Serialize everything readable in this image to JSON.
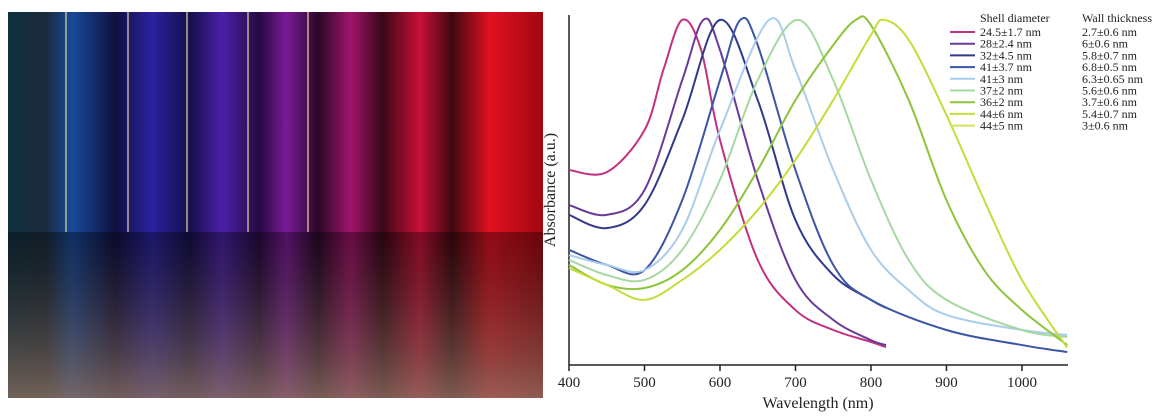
{
  "chart_data": {
    "type": "line",
    "xlabel": "Wavelength (nm)",
    "ylabel": "Absorbance (a.u.)",
    "legend_headers": [
      "Shell diameter",
      "Wall thickness"
    ],
    "xlim": [
      400,
      1061
    ],
    "ylim": [
      0,
      1
    ],
    "xticks": [
      400,
      500,
      600,
      700,
      800,
      900,
      1000
    ],
    "series": [
      {
        "name": "24.5±1.7 nm",
        "wall_thickness": "2.7±0.6 nm",
        "color": "#c2307f",
        "x": [
          400,
          450,
          500,
          525,
          550,
          575,
          600,
          650,
          700,
          750,
          800,
          820
        ],
        "values": [
          0.557,
          0.551,
          0.671,
          0.843,
          0.986,
          0.9,
          0.643,
          0.3,
          0.157,
          0.1,
          0.066,
          0.051
        ]
      },
      {
        "name": "28±2.4 nm",
        "wall_thickness": "6±0.6 nm",
        "color": "#6a3a9a",
        "x": [
          400,
          450,
          500,
          550,
          578,
          600,
          650,
          700,
          750,
          800,
          820
        ],
        "values": [
          0.457,
          0.429,
          0.5,
          0.814,
          0.986,
          0.9,
          0.529,
          0.243,
          0.129,
          0.071,
          0.057
        ]
      },
      {
        "name": "32±4.5 nm",
        "wall_thickness": "5.8±0.7 nm",
        "color": "#33378a",
        "x": [
          400,
          450,
          500,
          550,
          600,
          650,
          700,
          750,
          800,
          820
        ],
        "values": [
          0.429,
          0.391,
          0.457,
          0.7,
          0.986,
          0.757,
          0.414,
          0.257,
          0.186,
          0.163
        ]
      },
      {
        "name": "41±3.7 nm",
        "wall_thickness": "6.8±0.5 nm",
        "color": "#3c55a5",
        "x": [
          400,
          450,
          500,
          550,
          600,
          627,
          650,
          700,
          750,
          800,
          900,
          1000,
          1060
        ],
        "values": [
          0.329,
          0.286,
          0.271,
          0.471,
          0.814,
          0.986,
          0.914,
          0.557,
          0.286,
          0.186,
          0.1,
          0.057,
          0.037
        ]
      },
      {
        "name": "41±3 nm",
        "wall_thickness": "6.3±0.65 nm",
        "color": "#a9cdeb",
        "x": [
          400,
          450,
          500,
          550,
          600,
          665,
          700,
          750,
          800,
          850,
          900,
          1000,
          1060
        ],
        "values": [
          0.314,
          0.286,
          0.271,
          0.386,
          0.671,
          0.986,
          0.843,
          0.557,
          0.329,
          0.214,
          0.143,
          0.1,
          0.086
        ]
      },
      {
        "name": "37±2 nm",
        "wall_thickness": "5.6±0.6 nm",
        "color": "#a6d8a2",
        "x": [
          400,
          450,
          500,
          550,
          600,
          650,
          703,
          750,
          800,
          850,
          900,
          1000,
          1060
        ],
        "values": [
          0.3,
          0.257,
          0.243,
          0.329,
          0.529,
          0.814,
          0.986,
          0.814,
          0.529,
          0.3,
          0.186,
          0.1,
          0.08
        ]
      },
      {
        "name": "36±2 nm",
        "wall_thickness": "3.7±0.6 nm",
        "color": "#8cc43c",
        "x": [
          400,
          450,
          500,
          550,
          600,
          650,
          700,
          750,
          780,
          800,
          850,
          900,
          950,
          1000,
          1060
        ],
        "values": [
          0.286,
          0.229,
          0.22,
          0.271,
          0.386,
          0.557,
          0.757,
          0.914,
          0.986,
          0.971,
          0.757,
          0.471,
          0.271,
          0.157,
          0.057
        ]
      },
      {
        "name": "44±6 nm",
        "wall_thickness": "5.4±0.7 nm",
        "color": "#c6dc3a",
        "x": [
          400,
          450,
          500,
          550,
          600,
          650,
          700,
          750,
          800,
          817,
          850,
          900,
          950,
          1000,
          1060
        ],
        "values": [
          0.277,
          0.229,
          0.186,
          0.243,
          0.329,
          0.443,
          0.586,
          0.757,
          0.943,
          0.986,
          0.929,
          0.714,
          0.471,
          0.243,
          0.049
        ]
      }
    ],
    "extra_legend_row": {
      "name": "44±5 nm",
      "wall_thickness": "3±0.6 nm",
      "color": "#d4e35a"
    }
  }
}
